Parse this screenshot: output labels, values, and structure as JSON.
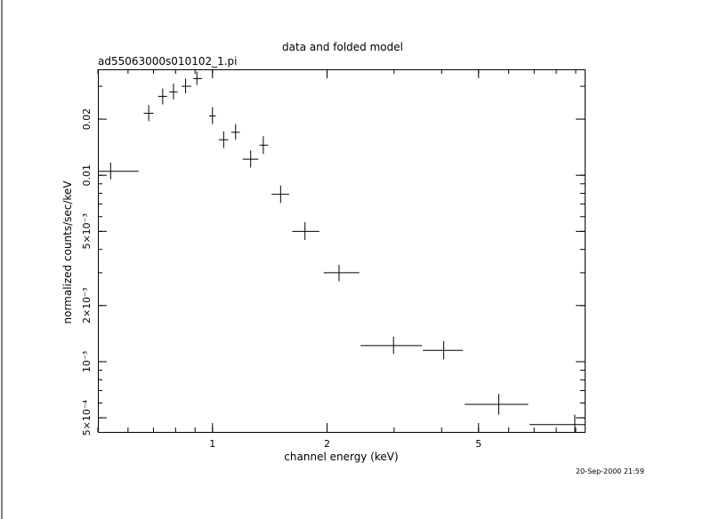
{
  "chart_data": {
    "type": "scatter",
    "title": "data and folded model",
    "subtitle": "ad55063000s010102_1.pi",
    "xlabel": "channel energy (keV)",
    "ylabel": "normalized counts/sec/keV",
    "x_scale": "log",
    "y_scale": "log",
    "xlim": [
      0.5,
      9.5
    ],
    "ylim": [
      0.00042,
      0.037
    ],
    "x_tick_labels": [
      "1",
      "2",
      "5"
    ],
    "x_tick_values": [
      1,
      2,
      5
    ],
    "y_tick_labels": [
      "5×10⁻⁴",
      "10⁻³",
      "2×10⁻³",
      "5×10⁻³",
      "0.01",
      "0.02"
    ],
    "y_tick_values": [
      0.0005,
      0.001,
      0.002,
      0.005,
      0.01,
      0.02
    ],
    "grid": false,
    "series": [
      {
        "points": [
          {
            "x": 0.54,
            "xlo": 0.5,
            "xhi": 0.64,
            "y": 0.0105,
            "ylo": 0.0095,
            "yhi": 0.0117
          },
          {
            "x": 0.68,
            "xlo": 0.66,
            "xhi": 0.7,
            "y": 0.0215,
            "ylo": 0.0195,
            "yhi": 0.0238
          },
          {
            "x": 0.74,
            "xlo": 0.72,
            "xhi": 0.76,
            "y": 0.0265,
            "ylo": 0.024,
            "yhi": 0.0292
          },
          {
            "x": 0.79,
            "xlo": 0.77,
            "xhi": 0.81,
            "y": 0.028,
            "ylo": 0.0255,
            "yhi": 0.031
          },
          {
            "x": 0.85,
            "xlo": 0.83,
            "xhi": 0.88,
            "y": 0.03,
            "ylo": 0.0275,
            "yhi": 0.033
          },
          {
            "x": 0.91,
            "xlo": 0.89,
            "xhi": 0.94,
            "y": 0.033,
            "ylo": 0.0305,
            "yhi": 0.036
          },
          {
            "x": 1.0,
            "xlo": 0.98,
            "xhi": 1.02,
            "y": 0.0208,
            "ylo": 0.0188,
            "yhi": 0.0232
          },
          {
            "x": 1.07,
            "xlo": 1.04,
            "xhi": 1.1,
            "y": 0.0155,
            "ylo": 0.014,
            "yhi": 0.0172
          },
          {
            "x": 1.15,
            "xlo": 1.12,
            "xhi": 1.18,
            "y": 0.017,
            "ylo": 0.0155,
            "yhi": 0.0188
          },
          {
            "x": 1.26,
            "xlo": 1.2,
            "xhi": 1.32,
            "y": 0.0122,
            "ylo": 0.011,
            "yhi": 0.0136
          },
          {
            "x": 1.36,
            "xlo": 1.33,
            "xhi": 1.4,
            "y": 0.0145,
            "ylo": 0.013,
            "yhi": 0.0162
          },
          {
            "x": 1.51,
            "xlo": 1.43,
            "xhi": 1.59,
            "y": 0.0079,
            "ylo": 0.0071,
            "yhi": 0.0088
          },
          {
            "x": 1.75,
            "xlo": 1.62,
            "xhi": 1.91,
            "y": 0.005,
            "ylo": 0.0045,
            "yhi": 0.0056
          },
          {
            "x": 2.15,
            "xlo": 1.96,
            "xhi": 2.43,
            "y": 0.003,
            "ylo": 0.0027,
            "yhi": 0.0033
          },
          {
            "x": 2.99,
            "xlo": 2.45,
            "xhi": 3.55,
            "y": 0.00122,
            "ylo": 0.0011,
            "yhi": 0.00136
          },
          {
            "x": 4.05,
            "xlo": 3.57,
            "xhi": 4.55,
            "y": 0.00115,
            "ylo": 0.00103,
            "yhi": 0.00129
          },
          {
            "x": 5.65,
            "xlo": 4.6,
            "xhi": 6.75,
            "y": 0.00059,
            "ylo": 0.00052,
            "yhi": 0.00067
          },
          {
            "x": 8.95,
            "xlo": 6.8,
            "xhi": 9.5,
            "y": 0.00046,
            "ylo": 0.00042,
            "yhi": 0.00052
          }
        ]
      }
    ]
  },
  "timestamp": "20-Sep-2000 21:59"
}
